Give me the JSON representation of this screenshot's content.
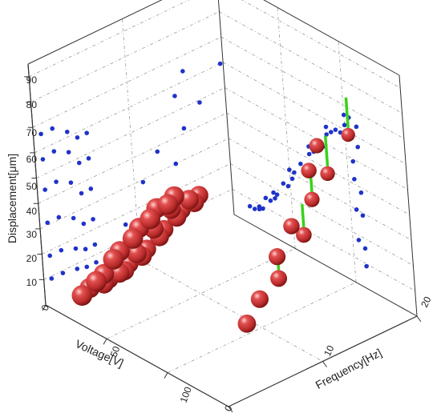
{
  "chart_data": {
    "type": "scatter3d",
    "title": "",
    "xlabel": "Voltage[V]",
    "ylabel": "Frequency[Hz]",
    "zlabel": "Displacement[μm]",
    "xlim": [
      0,
      150
    ],
    "ylim": [
      0,
      20
    ],
    "zlim": [
      0,
      95
    ],
    "x_ticks": [
      "0",
      "50",
      "100"
    ],
    "y_ticks": [
      "0",
      "10",
      "20"
    ],
    "z_ticks": [
      "10",
      "20",
      "30",
      "40",
      "50",
      "60",
      "70",
      "80",
      "90"
    ],
    "grid": true,
    "legend": "none",
    "colors": {
      "sphere": "#d03a3a",
      "projection": "#1f33c8",
      "error_bar": "#39d11a",
      "axis": "#333333",
      "grid": "#9a9a9a"
    },
    "series": [
      {
        "note": "x = Voltage [V], y = Frequency [Hz], z = Displacement [μm]",
        "points": [
          {
            "x": 25,
            "y": 0.8,
            "z": 9
          },
          {
            "x": 38,
            "y": 0.8,
            "z": 18
          },
          {
            "x": 54,
            "y": 0.8,
            "z": 31
          },
          {
            "x": 72,
            "y": 0.8,
            "z": 44
          },
          {
            "x": 88,
            "y": 0.8,
            "z": 56
          },
          {
            "x": 104,
            "y": 0.8,
            "z": 66
          },
          {
            "x": 22,
            "y": 2,
            "z": 9
          },
          {
            "x": 35,
            "y": 2,
            "z": 18
          },
          {
            "x": 50,
            "y": 2,
            "z": 31
          },
          {
            "x": 68,
            "y": 2,
            "z": 45
          },
          {
            "x": 84,
            "y": 2,
            "z": 57
          },
          {
            "x": 100,
            "y": 2,
            "z": 66
          },
          {
            "x": 22,
            "y": 3.5,
            "z": 8
          },
          {
            "x": 36,
            "y": 3.5,
            "z": 16
          },
          {
            "x": 52,
            "y": 3.5,
            "z": 28
          },
          {
            "x": 68,
            "y": 3.5,
            "z": 42
          },
          {
            "x": 84,
            "y": 3.5,
            "z": 54
          },
          {
            "x": 100,
            "y": 3.5,
            "z": 62
          },
          {
            "x": 18,
            "y": 4.5,
            "z": 7
          },
          {
            "x": 32,
            "y": 4.5,
            "z": 14
          },
          {
            "x": 48,
            "y": 4.5,
            "z": 24
          },
          {
            "x": 64,
            "y": 4.5,
            "z": 36
          },
          {
            "x": 80,
            "y": 4.5,
            "z": 48
          },
          {
            "x": 96,
            "y": 4.5,
            "z": 58
          },
          {
            "x": 14,
            "y": 5.5,
            "z": 7
          },
          {
            "x": 28,
            "y": 5.5,
            "z": 14
          },
          {
            "x": 44,
            "y": 5.5,
            "z": 24
          },
          {
            "x": 60,
            "y": 5.5,
            "z": 36
          },
          {
            "x": 76,
            "y": 5.5,
            "z": 48
          },
          {
            "x": 92,
            "y": 5.5,
            "z": 58
          },
          {
            "x": 110,
            "y": 7.3,
            "z": 9
          },
          {
            "x": 110,
            "y": 8.8,
            "z": 16
          },
          {
            "x": 110,
            "y": 10.9,
            "z": 29
          },
          {
            "x": 110,
            "y": 12.6,
            "z": 38
          },
          {
            "x": 110,
            "y": 14.8,
            "z": 56
          },
          {
            "x": 110,
            "y": 15.8,
            "z": 64
          },
          {
            "x": 105,
            "y": 11.5,
            "z": 18,
            "err": 2
          },
          {
            "x": 105,
            "y": 14.4,
            "z": 30,
            "err": 3
          },
          {
            "x": 105,
            "y": 15.5,
            "z": 42,
            "err": 3
          },
          {
            "x": 105,
            "y": 17.3,
            "z": 49,
            "err": 4
          },
          {
            "x": 105,
            "y": 19.7,
            "z": 60,
            "err": 4
          }
        ]
      }
    ]
  }
}
